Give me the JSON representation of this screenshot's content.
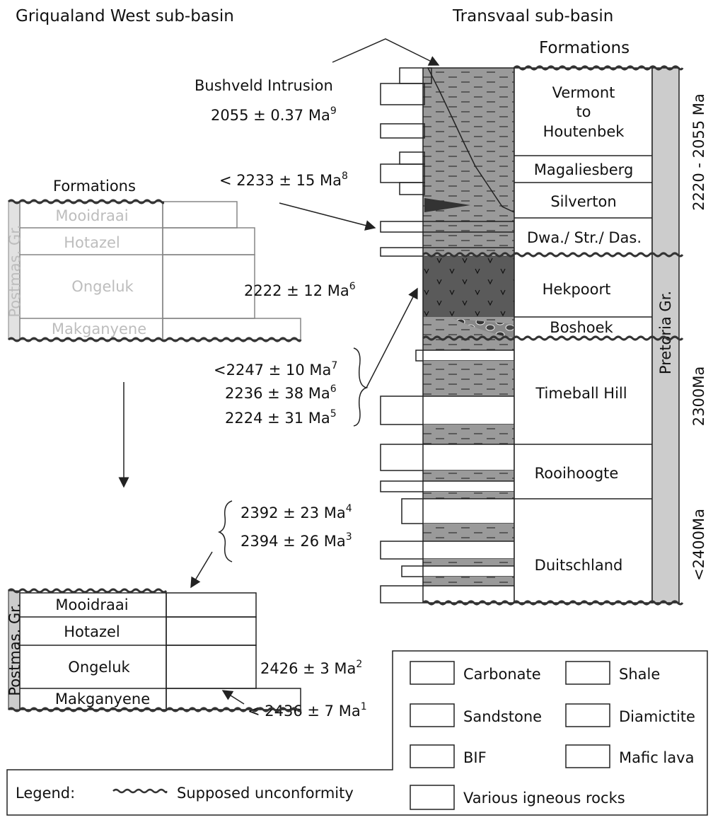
{
  "titles": {
    "left": "Griqualand West sub-basin",
    "right": "Transvaal sub-basin"
  },
  "transvaal": {
    "heading": "Formations",
    "formations": {
      "vermont": [
        "Vermont",
        "to",
        "Houtenbek"
      ],
      "magaliesberg": "Magaliesberg",
      "silverton": "Silverton",
      "dwa": "Dwa./ Str./ Das.",
      "hekpoort": "Hekpoort",
      "boshoek": "Boshoek",
      "timeball": "Timeball Hill",
      "rooihoogte": "Rooihoogte",
      "duitschland": "Duitschland"
    },
    "group": "Pretoria Gr.",
    "age_ranges": [
      "2220 - 2055 Ma",
      "2300Ma",
      "<2400Ma"
    ]
  },
  "annotations": {
    "bushveld": "Bushveld Intrusion",
    "bushveld_age": {
      "text": "2055 ± 0.37 Ma",
      "ref": "9"
    },
    "silverton_age": {
      "text": "< 2233 ± 15 Ma",
      "ref": "8"
    },
    "hekpoort_ages": [
      {
        "text": "<2247 ± 10 Ma",
        "ref": "7"
      },
      {
        "text": "2236 ± 38 Ma",
        "ref": "6"
      },
      {
        "text": "2224 ± 31 Ma",
        "ref": "5"
      }
    ],
    "mooidraai_ages": [
      {
        "text": "2392 ± 23 Ma",
        "ref": "4"
      },
      {
        "text": "2394 ± 26 Ma",
        "ref": "3"
      }
    ]
  },
  "griqualand_before": {
    "heading": "Formations",
    "group": "Postmas. Gr.",
    "formations": [
      "Mooidraai",
      "Hotazel",
      "Ongeluk",
      "Makganyene"
    ],
    "age": {
      "text": "2222 ± 12 Ma",
      "ref": "6"
    }
  },
  "griqualand_after": {
    "group": "Postmas. Gr.",
    "formations": [
      "Mooidraai",
      "Hotazel",
      "Ongeluk",
      "Makganyene"
    ],
    "ongeluk_age": {
      "text": "2426 ± 3 Ma",
      "ref": "2"
    },
    "makganyene_age": {
      "text": "< 2436 ± 7 Ma",
      "ref": "1"
    }
  },
  "legend": {
    "title": "Legend:",
    "unconformity": "Supposed unconformity",
    "items": [
      "Carbonate",
      "Shale",
      "Sandstone",
      "Diamictite",
      "BIF",
      "Mafic lava",
      "Various igneous rocks"
    ]
  }
}
